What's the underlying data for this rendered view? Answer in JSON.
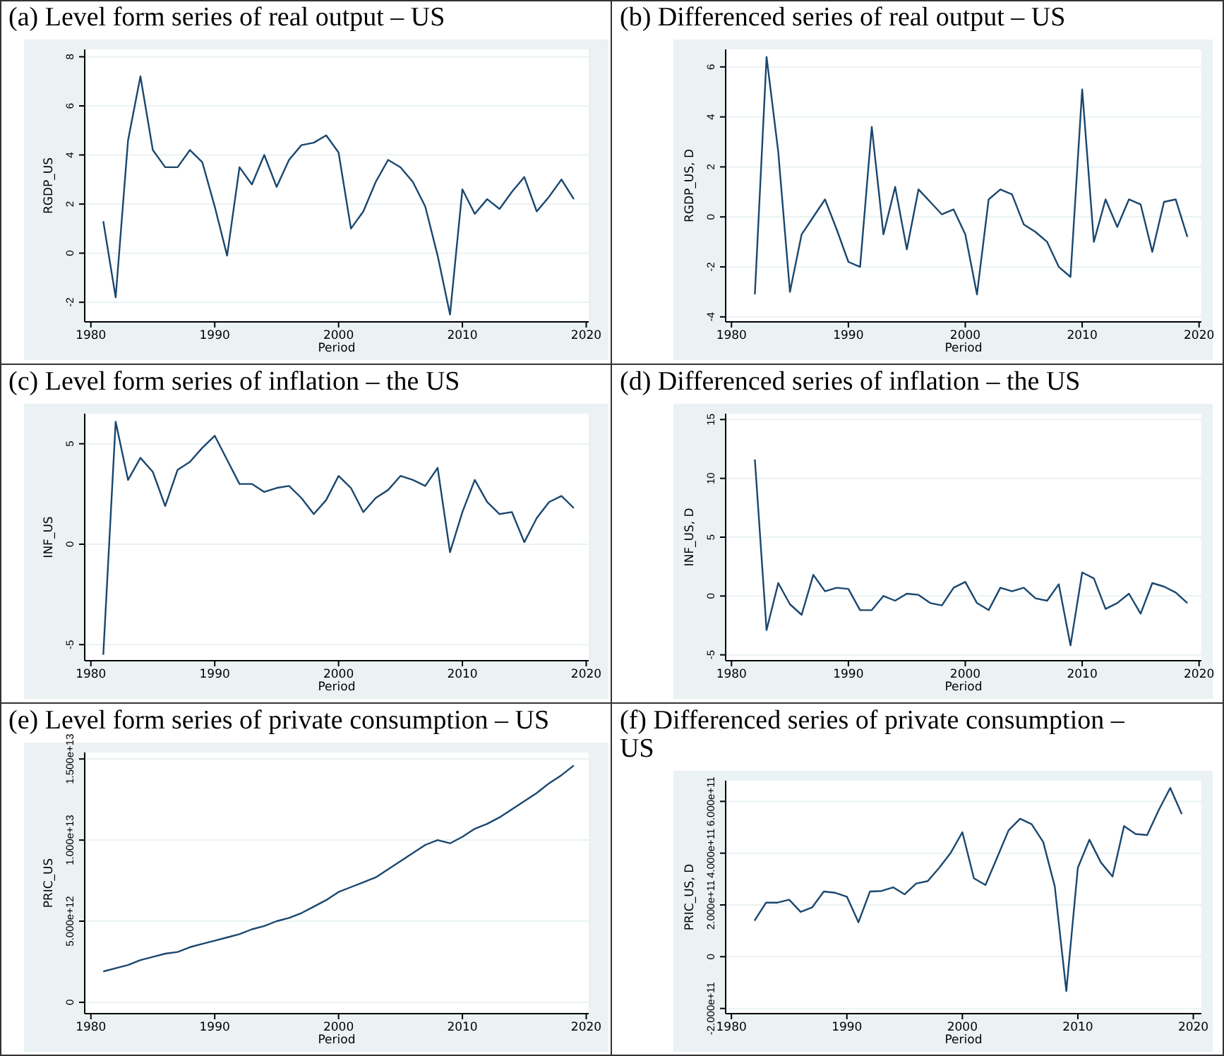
{
  "chart_data": [
    {
      "type": "line",
      "title": "(a) Level form series of real output – US",
      "xlabel": "Period",
      "ylabel": "RGDP_US",
      "color": "#1a476f",
      "grid": "y",
      "xlim": [
        1979.5,
        2020.2
      ],
      "xticks": [
        1980,
        1990,
        2000,
        2010,
        2020
      ],
      "ylim": [
        -2.8,
        8.3
      ],
      "yticks": [
        -2,
        0,
        2,
        4,
        6,
        8
      ],
      "x": [
        1981,
        1982,
        1983,
        1984,
        1985,
        1986,
        1987,
        1988,
        1989,
        1990,
        1991,
        1992,
        1993,
        1994,
        1995,
        1996,
        1997,
        1998,
        1999,
        2000,
        2001,
        2002,
        2003,
        2004,
        2005,
        2006,
        2007,
        2008,
        2009,
        2010,
        2011,
        2012,
        2013,
        2014,
        2015,
        2016,
        2017,
        2018,
        2019
      ],
      "values": [
        1.3,
        -1.8,
        4.6,
        7.2,
        4.2,
        3.5,
        3.5,
        4.2,
        3.7,
        1.9,
        -0.1,
        3.5,
        2.8,
        4.0,
        2.7,
        3.8,
        4.4,
        4.5,
        4.8,
        4.1,
        1.0,
        1.7,
        2.9,
        3.8,
        3.5,
        2.9,
        1.9,
        -0.1,
        -2.5,
        2.6,
        1.6,
        2.2,
        1.8,
        2.5,
        3.1,
        1.7,
        2.3,
        3.0,
        2.2
      ]
    },
    {
      "type": "line",
      "title": "(b) Differenced series of real output – US",
      "xlabel": "Period",
      "ylabel": "RGDP_US, D",
      "color": "#1a476f",
      "grid": "y",
      "xlim": [
        1979.5,
        2020.2
      ],
      "xticks": [
        1980,
        1990,
        2000,
        2010,
        2020
      ],
      "ylim": [
        -4.2,
        6.7
      ],
      "yticks": [
        -4,
        -2,
        0,
        2,
        4,
        6
      ],
      "x": [
        1982,
        1983,
        1984,
        1985,
        1986,
        1987,
        1988,
        1989,
        1990,
        1991,
        1992,
        1993,
        1994,
        1995,
        1996,
        1997,
        1998,
        1999,
        2000,
        2001,
        2002,
        2003,
        2004,
        2005,
        2006,
        2007,
        2008,
        2009,
        2010,
        2011,
        2012,
        2013,
        2014,
        2015,
        2016,
        2017,
        2018,
        2019
      ],
      "values": [
        -3.1,
        6.4,
        2.6,
        -3.0,
        -0.7,
        0.0,
        0.7,
        -0.5,
        -1.8,
        -2.0,
        3.6,
        -0.7,
        1.2,
        -1.3,
        1.1,
        0.6,
        0.1,
        0.3,
        -0.7,
        -3.1,
        0.7,
        1.1,
        0.9,
        -0.3,
        -0.6,
        -1.0,
        -2.0,
        -2.4,
        5.1,
        -1.0,
        0.7,
        -0.4,
        0.7,
        0.5,
        -1.4,
        0.6,
        0.7,
        -0.8
      ]
    },
    {
      "type": "line",
      "title": "(c) Level form series of inflation – the US",
      "xlabel": "Period",
      "ylabel": "INF_US",
      "color": "#1a476f",
      "grid": "y",
      "xlim": [
        1979.5,
        2020.2
      ],
      "xticks": [
        1980,
        1990,
        2000,
        2010,
        2020
      ],
      "ylim": [
        -5.8,
        6.5
      ],
      "yticks": [
        -5,
        0,
        5
      ],
      "x": [
        1981,
        1982,
        1983,
        1984,
        1985,
        1986,
        1987,
        1988,
        1989,
        1990,
        1991,
        1992,
        1993,
        1994,
        1995,
        1996,
        1997,
        1998,
        1999,
        2000,
        2001,
        2002,
        2003,
        2004,
        2005,
        2006,
        2007,
        2008,
        2009,
        2010,
        2011,
        2012,
        2013,
        2014,
        2015,
        2016,
        2017,
        2018,
        2019
      ],
      "values": [
        -5.5,
        6.1,
        3.2,
        4.3,
        3.6,
        1.9,
        3.7,
        4.1,
        4.8,
        5.4,
        4.2,
        3.0,
        3.0,
        2.6,
        2.8,
        2.9,
        2.3,
        1.5,
        2.2,
        3.4,
        2.8,
        1.6,
        2.3,
        2.7,
        3.4,
        3.2,
        2.9,
        3.8,
        -0.4,
        1.6,
        3.2,
        2.1,
        1.5,
        1.6,
        0.1,
        1.3,
        2.1,
        2.4,
        1.8
      ]
    },
    {
      "type": "line",
      "title": "(d) Differenced series of inflation – the US",
      "xlabel": "Period",
      "ylabel": "INF_US, D",
      "color": "#1a476f",
      "grid": "y",
      "xlim": [
        1979.5,
        2020.2
      ],
      "xticks": [
        1980,
        1990,
        2000,
        2010,
        2020
      ],
      "ylim": [
        -5.5,
        15.5
      ],
      "yticks": [
        -5,
        0,
        5,
        10,
        15
      ],
      "x": [
        1982,
        1983,
        1984,
        1985,
        1986,
        1987,
        1988,
        1989,
        1990,
        1991,
        1992,
        1993,
        1994,
        1995,
        1996,
        1997,
        1998,
        1999,
        2000,
        2001,
        2002,
        2003,
        2004,
        2005,
        2006,
        2007,
        2008,
        2009,
        2010,
        2011,
        2012,
        2013,
        2014,
        2015,
        2016,
        2017,
        2018,
        2019
      ],
      "values": [
        11.6,
        -2.9,
        1.1,
        -0.7,
        -1.6,
        1.8,
        0.4,
        0.7,
        0.6,
        -1.2,
        -1.2,
        0.0,
        -0.4,
        0.2,
        0.1,
        -0.6,
        -0.8,
        0.7,
        1.2,
        -0.6,
        -1.2,
        0.7,
        0.4,
        0.7,
        -0.2,
        -0.4,
        1.0,
        -4.2,
        2.0,
        1.5,
        -1.1,
        -0.6,
        0.2,
        -1.5,
        1.1,
        0.8,
        0.3,
        -0.6
      ]
    },
    {
      "type": "line",
      "title": "(e) Level form series of private consumption – US",
      "xlabel": "Period",
      "ylabel": "PRIC_US",
      "color": "#1a476f",
      "grid": "y",
      "xlim": [
        1979.5,
        2020.2
      ],
      "xticks": [
        1980,
        1990,
        2000,
        2010,
        2020
      ],
      "ylim": [
        -700000000000,
        15400000000000
      ],
      "yticks": [
        0,
        {
          "value": 5000000000000,
          "label": "5.000e+12"
        },
        {
          "value": 10000000000000,
          "label": "1.000e+13"
        },
        {
          "value": 15000000000000,
          "label": "1.500e+13"
        }
      ],
      "x": [
        1981,
        1982,
        1983,
        1984,
        1985,
        1986,
        1987,
        1988,
        1989,
        1990,
        1991,
        1992,
        1993,
        1994,
        1995,
        1996,
        1997,
        1998,
        1999,
        2000,
        2001,
        2002,
        2003,
        2004,
        2005,
        2006,
        2007,
        2008,
        2009,
        2010,
        2011,
        2012,
        2013,
        2014,
        2015,
        2016,
        2017,
        2018,
        2019
      ],
      "values": [
        1900000000000,
        2100000000000,
        2300000000000,
        2600000000000,
        2800000000000,
        3000000000000,
        3100000000000,
        3400000000000,
        3600000000000,
        3800000000000,
        4000000000000,
        4200000000000,
        4500000000000,
        4700000000000,
        5000000000000,
        5200000000000,
        5500000000000,
        5900000000000,
        6300000000000,
        6800000000000,
        7100000000000,
        7400000000000,
        7700000000000,
        8200000000000,
        8700000000000,
        9200000000000,
        9700000000000,
        10000000000000,
        9800000000000,
        10200000000000,
        10700000000000,
        11000000000000,
        11400000000000,
        11900000000000,
        12400000000000,
        12900000000000,
        13500000000000,
        14000000000000,
        14600000000000
      ]
    },
    {
      "type": "line",
      "title": "(f) Differenced series of private consumption – US",
      "xlabel": "Period",
      "ylabel": "PRIC_US, D",
      "color": "#1a476f",
      "grid": "y",
      "xlim": [
        1979.5,
        2020.7
      ],
      "xticks": [
        1980,
        1990,
        2000,
        2010,
        2020
      ],
      "ylim": [
        -220000000000,
        680000000000
      ],
      "yticks": [
        {
          "value": -200000000000,
          "label": "-2.000e+11"
        },
        0,
        {
          "value": 200000000000,
          "label": "2.000e+11"
        },
        {
          "value": 400000000000,
          "label": "4.000e+11"
        },
        {
          "value": 600000000000,
          "label": "6.000e+11"
        }
      ],
      "x": [
        1982,
        1983,
        1984,
        1985,
        1986,
        1987,
        1988,
        1989,
        1990,
        1991,
        1992,
        1993,
        1994,
        1995,
        1996,
        1997,
        1998,
        1999,
        2000,
        2001,
        2002,
        2003,
        2004,
        2005,
        2006,
        2007,
        2008,
        2009,
        2010,
        2011,
        2012,
        2013,
        2014,
        2015,
        2016,
        2017,
        2018,
        2019
      ],
      "values": [
        139000000000,
        209000000000,
        209000000000,
        220000000000,
        173000000000,
        191000000000,
        252000000000,
        247000000000,
        232000000000,
        133000000000,
        252000000000,
        254000000000,
        268000000000,
        241000000000,
        283000000000,
        292000000000,
        344000000000,
        402000000000,
        481000000000,
        303000000000,
        277000000000,
        382000000000,
        488000000000,
        533000000000,
        512000000000,
        443000000000,
        272000000000,
        -133000000000,
        344000000000,
        452000000000,
        364000000000,
        310000000000,
        505000000000,
        474000000000,
        470000000000,
        566000000000,
        652000000000,
        551000000000
      ]
    }
  ]
}
